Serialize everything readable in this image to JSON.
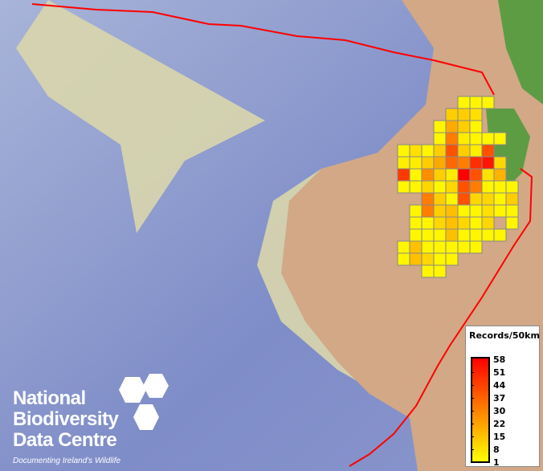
{
  "legend": {
    "title": "Records/50km",
    "ticks": [
      "58",
      "51",
      "44",
      "37",
      "30",
      "22",
      "15",
      "8",
      "1"
    ],
    "min": 1,
    "max": 58,
    "colors": {
      "low": "#ffff00",
      "mid": "#ff8000",
      "high": "#ff0000"
    }
  },
  "logo": {
    "line1": "National",
    "line2": "Biodiversity",
    "line3": "Data Centre",
    "tagline": "Documenting Ireland's Wildlife"
  },
  "colors": {
    "boundary": "#ff0000",
    "grid_border": "#888888",
    "ocean": "#7e8cc8",
    "shelf": "#d9d6ac",
    "land": "#d2a886",
    "vegetation": "#5e9c44"
  },
  "grid_records": [
    [
      null,
      null,
      null,
      null,
      null,
      3,
      3,
      3,
      null,
      null
    ],
    [
      null,
      null,
      null,
      null,
      12,
      12,
      8,
      null,
      null,
      null
    ],
    [
      null,
      null,
      null,
      3,
      20,
      12,
      3,
      null,
      null,
      null
    ],
    [
      null,
      null,
      null,
      3,
      30,
      5,
      3,
      3,
      3,
      null
    ],
    [
      3,
      8,
      3,
      12,
      40,
      12,
      5,
      40,
      null,
      null
    ],
    [
      5,
      5,
      12,
      20,
      35,
      30,
      48,
      53,
      10,
      null
    ],
    [
      45,
      3,
      26,
      12,
      5,
      58,
      40,
      8,
      18,
      null
    ],
    [
      3,
      3,
      10,
      3,
      10,
      40,
      30,
      3,
      3,
      3
    ],
    [
      null,
      null,
      30,
      12,
      3,
      40,
      10,
      10,
      3,
      12
    ],
    [
      null,
      3,
      30,
      12,
      15,
      3,
      3,
      8,
      3,
      3
    ],
    [
      null,
      3,
      3,
      10,
      15,
      10,
      3,
      10,
      null,
      3
    ],
    [
      null,
      3,
      3,
      3,
      15,
      3,
      3,
      3,
      3,
      null
    ],
    [
      3,
      15,
      3,
      3,
      3,
      3,
      3,
      null,
      null,
      null
    ],
    [
      3,
      15,
      10,
      3,
      3,
      null,
      null,
      null,
      null,
      null
    ],
    [
      null,
      null,
      3,
      3,
      null,
      null,
      null,
      null,
      null,
      null
    ]
  ]
}
